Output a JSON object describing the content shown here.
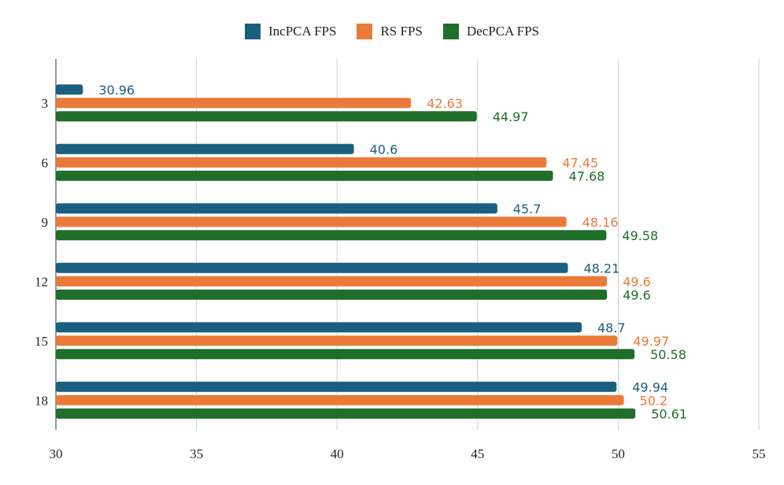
{
  "chart_data": {
    "type": "bar",
    "orientation": "horizontal",
    "categories": [
      "3",
      "6",
      "9",
      "12",
      "15",
      "18"
    ],
    "series": [
      {
        "name": "IncPCA FPS",
        "color": "#1a5f80",
        "values": [
          30.96,
          40.6,
          45.7,
          48.21,
          48.7,
          49.94
        ]
      },
      {
        "name": "RS FPS",
        "color": "#ea7a3a",
        "values": [
          42.63,
          47.45,
          48.16,
          49.6,
          49.97,
          50.2
        ]
      },
      {
        "name": "DecPCA FPS",
        "color": "#1f6e2a",
        "values": [
          44.97,
          47.68,
          49.58,
          49.6,
          50.58,
          50.61
        ]
      }
    ],
    "xlim": [
      30,
      55
    ],
    "xticks": [
      "30",
      "35",
      "40",
      "45",
      "50",
      "55"
    ],
    "grid": true,
    "legend_position": "top"
  }
}
